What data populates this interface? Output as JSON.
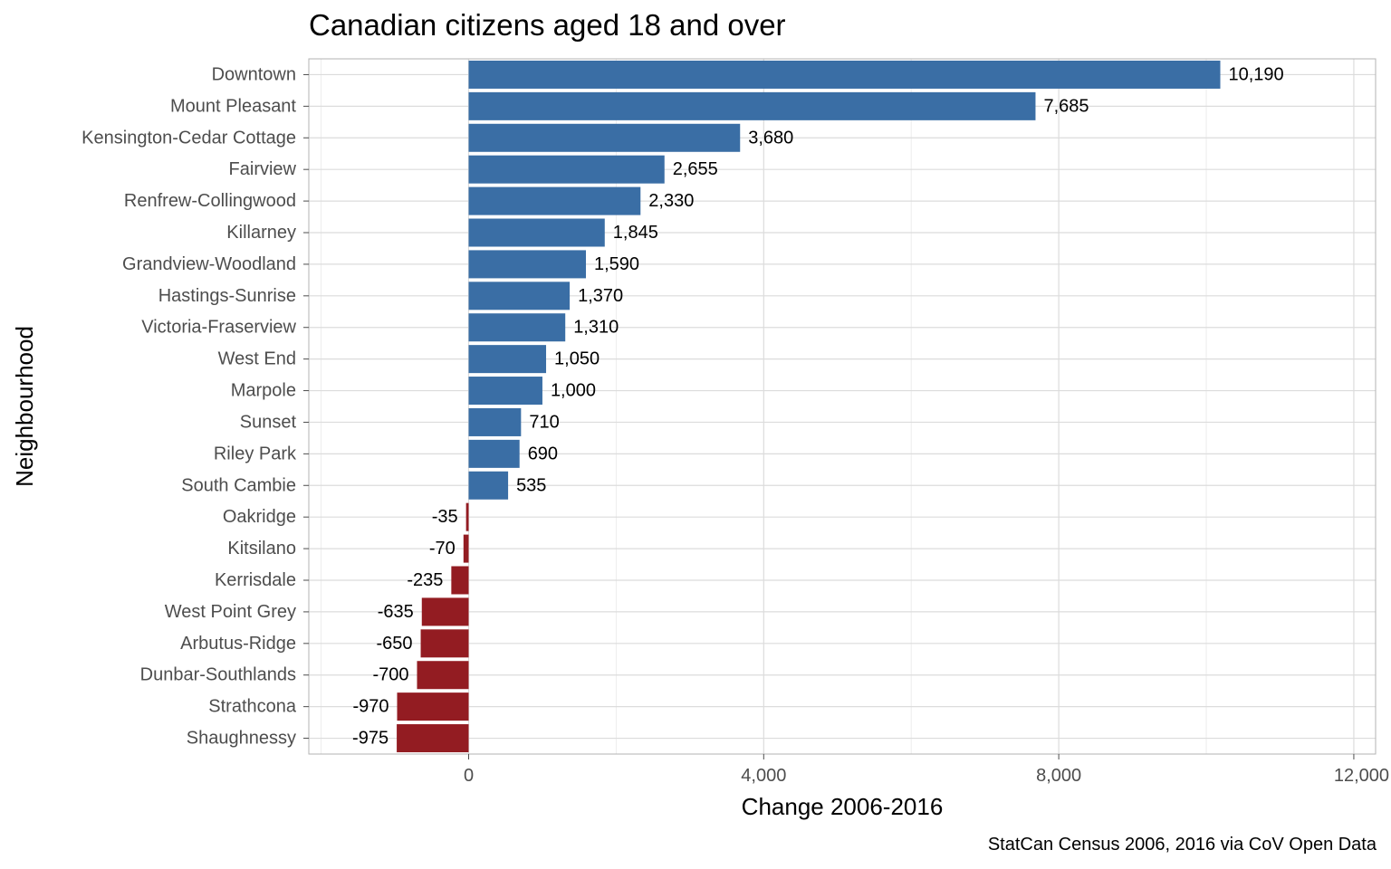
{
  "chart_data": {
    "type": "bar",
    "orientation": "horizontal",
    "title": "Canadian citizens aged 18 and over",
    "xlabel": "Change 2006-2016",
    "ylabel": "Neighbourhood",
    "caption": "StatCan Census 2006, 2016 via CoV Open Data",
    "xlim": [
      -2000,
      12000
    ],
    "x_ticks": [
      0,
      4000,
      8000,
      12000
    ],
    "x_tick_labels": [
      "0",
      "4,000",
      "8,000",
      "12,000"
    ],
    "grid": true,
    "legend": "none",
    "colors": {
      "positive": "#3a6ea5",
      "negative": "#931c22",
      "grid_major": "#dcdcdc",
      "grid_minor": "#ececec",
      "panel_border": "#b3b3b3"
    },
    "categories": [
      "Downtown",
      "Mount Pleasant",
      "Kensington-Cedar Cottage",
      "Fairview",
      "Renfrew-Collingwood",
      "Killarney",
      "Grandview-Woodland",
      "Hastings-Sunrise",
      "Victoria-Fraserview",
      "West End",
      "Marpole",
      "Sunset",
      "Riley Park",
      "South Cambie",
      "Oakridge",
      "Kitsilano",
      "Kerrisdale",
      "West Point Grey",
      "Arbutus-Ridge",
      "Dunbar-Southlands",
      "Strathcona",
      "Shaughnessy"
    ],
    "values": [
      10190,
      7685,
      3680,
      2655,
      2330,
      1845,
      1590,
      1370,
      1310,
      1050,
      1000,
      710,
      690,
      535,
      -35,
      -70,
      -235,
      -635,
      -650,
      -700,
      -970,
      -975
    ],
    "value_labels": [
      "10,190",
      "7,685",
      "3,680",
      "2,655",
      "2,330",
      "1,845",
      "1,590",
      "1,370",
      "1,310",
      "1,050",
      "1,000",
      "710",
      "690",
      "535",
      "-35",
      "-70",
      "-235",
      "-635",
      "-650",
      "-700",
      "-970",
      "-975"
    ]
  }
}
